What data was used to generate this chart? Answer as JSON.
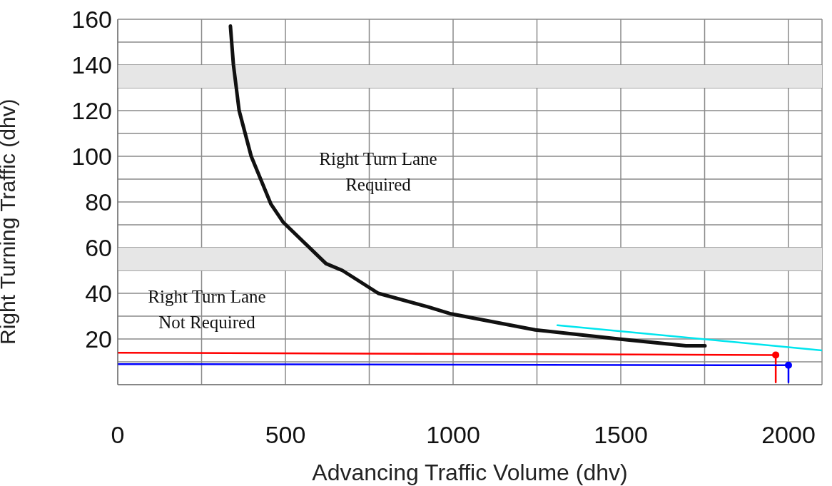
{
  "chart_data": {
    "type": "line",
    "xlabel": "Advancing Traffic Volume (dhv)",
    "ylabel": "Right Turning Traffic (dhv)",
    "xlim": [
      0,
      2100
    ],
    "xticks": [
      0,
      {
        "value": 250,
        "label": null
      },
      500,
      {
        "value": 750,
        "label": null
      },
      1000,
      {
        "value": 1250,
        "label": null
      },
      1500,
      {
        "value": 1750,
        "label": null
      },
      2000
    ],
    "ylim": [
      0,
      160
    ],
    "yticks": [
      {
        "value": 0,
        "label": null
      },
      {
        "value": 10,
        "label": null
      },
      20,
      {
        "value": 30,
        "label": null
      },
      40,
      {
        "value": 50,
        "label": null
      },
      60,
      {
        "value": 70,
        "label": null
      },
      80,
      {
        "value": 90,
        "label": null
      },
      100,
      {
        "value": 110,
        "label": null
      },
      120,
      {
        "value": 130,
        "label": null
      },
      140,
      {
        "value": 150,
        "label": null
      },
      160
    ],
    "grid": true,
    "legend": false,
    "marker": "none",
    "line_style": "solid",
    "bands": [
      {
        "axis": "y",
        "from": 130,
        "to": 140,
        "label": null,
        "color": "#e6e6e6"
      },
      {
        "axis": "y",
        "from": 50,
        "to": 60,
        "label": null,
        "color": "#e6e6e6"
      }
    ],
    "series": [
      {
        "color": "#111111",
        "x": [
          336,
          345,
          362,
          398,
          457,
          494,
          621,
          670,
          777,
          926,
          994,
          1245,
          1494,
          1694,
          1751
        ],
        "values": [
          157,
          140,
          120,
          100,
          79,
          71,
          53,
          50,
          40,
          34,
          31,
          24,
          20,
          17,
          17
        ]
      },
      {
        "color": "#00e5ee",
        "x": [
          1311,
          2100
        ],
        "values": [
          26,
          15
        ]
      },
      {
        "color": "#ff0000",
        "x": [
          0,
          1962,
          1962
        ],
        "values": [
          14,
          13,
          1
        ]
      },
      {
        "color": "#0000ff",
        "x": [
          0,
          2000,
          2000
        ],
        "values": [
          9,
          8.5,
          1
        ]
      },
      {
        "type": "scatter",
        "marker": "circle",
        "color": "#ff0000",
        "x": [
          1962
        ],
        "values": [
          13
        ]
      },
      {
        "type": "scatter",
        "marker": "circle",
        "color": "#0000ff",
        "x": [
          2000
        ],
        "values": [
          8.5
        ]
      }
    ],
    "annotations": [
      "Right Turn Lane\nRequired",
      "Right Turn Lane\nNot Required"
    ]
  }
}
